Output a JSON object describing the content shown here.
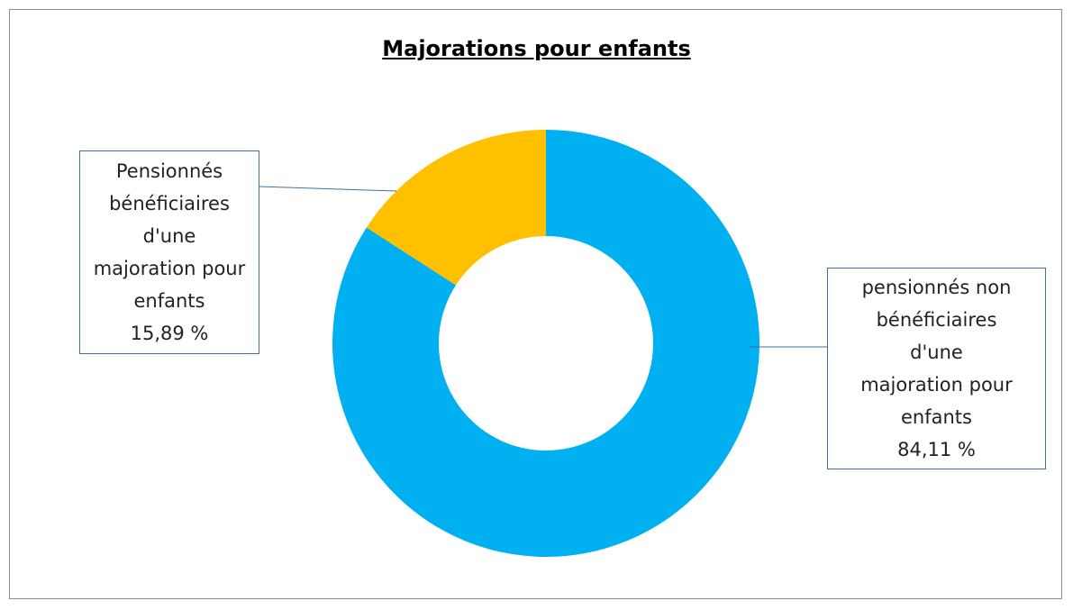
{
  "chart_data": {
    "type": "donut",
    "title": "Majorations pour enfants",
    "categories": [
      "pensionnés non bénéficiaires d'une majoration pour enfants",
      "Pensionnés bénéficiaires d'une majoration pour enfants"
    ],
    "values": [
      84.11,
      15.89
    ],
    "value_labels": [
      "84,11 %",
      "15,89 %"
    ],
    "colors": [
      "#00b0f0",
      "#ffc000"
    ]
  }
}
